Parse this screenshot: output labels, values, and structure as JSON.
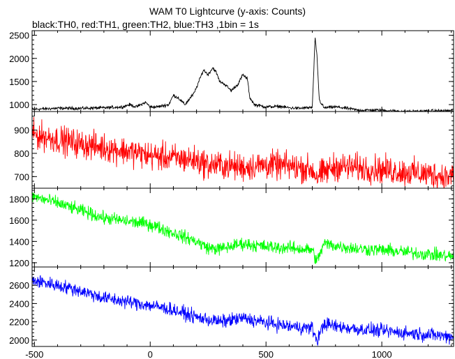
{
  "chart_data": {
    "type": "line",
    "title": "WAM T0 Lightcurve (y-axis: Counts)",
    "subtitle": "black:TH0, red:TH1, green:TH2, blue:TH3 ,1bin = 1s",
    "xlim": [
      -510,
      1310
    ],
    "x_ticks": [
      -500,
      0,
      500,
      1000
    ],
    "x_tick_labels": [
      "-500",
      "0",
      "500",
      "1000"
    ],
    "grid": false,
    "panels": [
      {
        "series": "TH0",
        "color": "#000000",
        "ylim": [
          850,
          2600
        ],
        "y_ticks": [
          1000,
          1500,
          2000,
          2500
        ],
        "y_tick_labels": [
          "1000",
          "1500",
          "2000",
          "2500"
        ],
        "x": [
          -500,
          -400,
          -300,
          -200,
          -120,
          -90,
          -60,
          -20,
          0,
          30,
          80,
          100,
          120,
          150,
          190,
          210,
          230,
          250,
          270,
          285,
          300,
          320,
          350,
          380,
          400,
          420,
          430,
          450,
          500,
          560,
          600,
          650,
          700,
          712,
          720,
          730,
          750,
          800,
          850,
          900,
          1000,
          1100,
          1200,
          1300
        ],
        "y": [
          900,
          920,
          920,
          930,
          950,
          1000,
          950,
          1050,
          950,
          950,
          1000,
          1200,
          1150,
          1000,
          1250,
          1500,
          1750,
          1650,
          1800,
          1700,
          1500,
          1450,
          1300,
          1450,
          1650,
          1550,
          1150,
          1000,
          950,
          960,
          930,
          920,
          940,
          2450,
          2050,
          1100,
          930,
          950,
          920,
          880,
          880,
          850,
          860,
          870
        ],
        "noise": 50
      },
      {
        "series": "TH1",
        "color": "#ff0000",
        "ylim": [
          650,
          980
        ],
        "y_ticks": [
          700,
          800,
          900
        ],
        "y_tick_labels": [
          "700",
          "800",
          "900"
        ],
        "x": [
          -500,
          -300,
          -100,
          0,
          100,
          200,
          250,
          300,
          400,
          500,
          600,
          700,
          720,
          800,
          1000,
          1200,
          1300
        ],
        "y": [
          880,
          840,
          810,
          790,
          780,
          770,
          750,
          750,
          740,
          750,
          745,
          730,
          700,
          745,
          730,
          710,
          700
        ],
        "noise": 90
      },
      {
        "series": "TH2",
        "color": "#00ff00",
        "ylim": [
          1160,
          1900
        ],
        "y_ticks": [
          1200,
          1400,
          1600,
          1800
        ],
        "y_tick_labels": [
          "1200",
          "1400",
          "1600",
          "1800"
        ],
        "x": [
          -500,
          -400,
          -300,
          -200,
          -100,
          0,
          100,
          200,
          250,
          300,
          400,
          500,
          600,
          700,
          720,
          750,
          800,
          900,
          1000,
          1100,
          1200,
          1300
        ],
        "y": [
          1820,
          1760,
          1690,
          1620,
          1590,
          1560,
          1480,
          1400,
          1340,
          1330,
          1380,
          1350,
          1340,
          1320,
          1210,
          1380,
          1360,
          1330,
          1320,
          1300,
          1280,
          1260
        ],
        "noise": 90
      },
      {
        "series": "TH3",
        "color": "#0000ff",
        "ylim": [
          1930,
          2800
        ],
        "y_ticks": [
          2000,
          2200,
          2400,
          2600
        ],
        "y_tick_labels": [
          "2000",
          "2200",
          "2400",
          "2600"
        ],
        "x": [
          -500,
          -400,
          -300,
          -200,
          -100,
          0,
          100,
          200,
          300,
          400,
          500,
          600,
          700,
          720,
          750,
          800,
          900,
          1000,
          1100,
          1200,
          1300
        ],
        "y": [
          2650,
          2600,
          2540,
          2460,
          2420,
          2380,
          2330,
          2250,
          2200,
          2240,
          2190,
          2150,
          2130,
          1990,
          2180,
          2150,
          2120,
          2100,
          2080,
          2060,
          2040
        ],
        "noise": 110
      }
    ]
  }
}
